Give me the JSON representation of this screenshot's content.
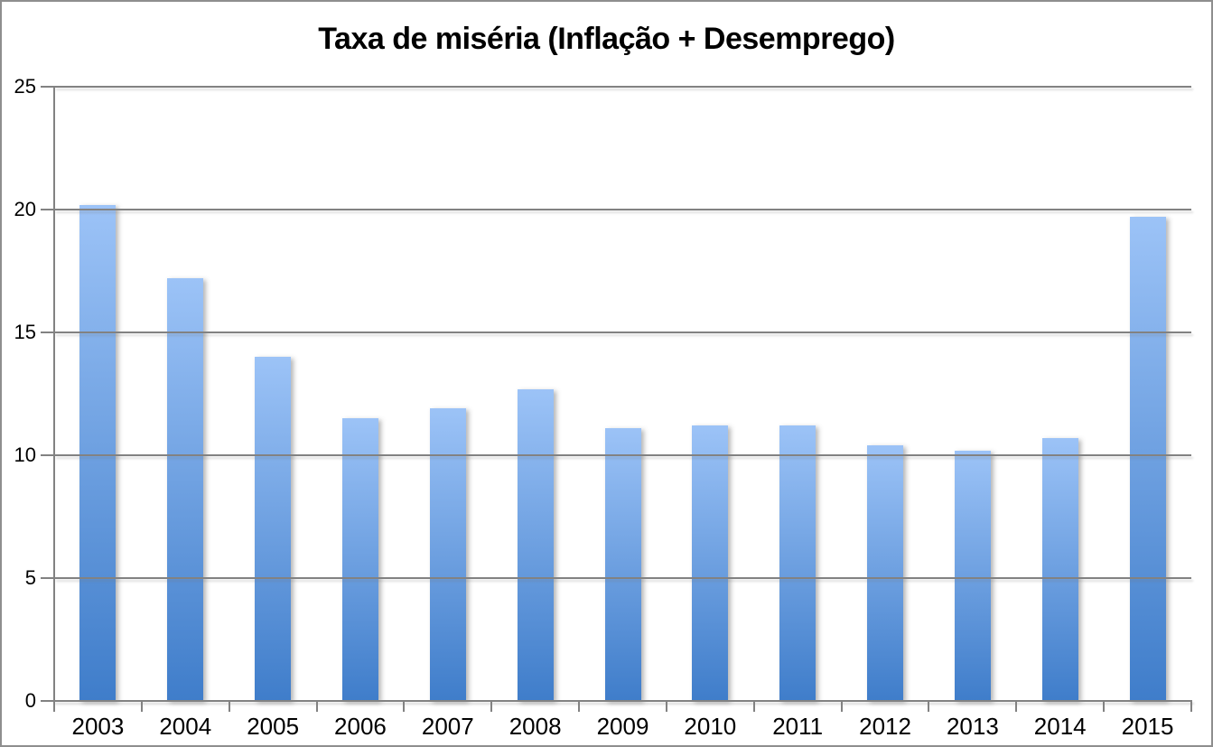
{
  "chart_data": {
    "type": "bar",
    "title": "Taxa de miséria (Inflação + Desemprego)",
    "categories": [
      "2003",
      "2004",
      "2005",
      "2006",
      "2007",
      "2008",
      "2009",
      "2010",
      "2011",
      "2012",
      "2013",
      "2014",
      "2015"
    ],
    "values": [
      20.2,
      17.2,
      14.0,
      11.5,
      11.9,
      12.7,
      11.1,
      11.2,
      11.2,
      10.4,
      10.2,
      10.7,
      19.7
    ],
    "xlabel": "",
    "ylabel": "",
    "ylim": [
      0,
      25
    ],
    "yticks": [
      0,
      5,
      10,
      15,
      20,
      25
    ],
    "grid": true,
    "legend": false,
    "colors": {
      "bar_gradient_top": "#9CC3F7",
      "bar_gradient_bottom": "#3F7DCA",
      "gridline": "#828282",
      "axis": "#828282",
      "label_text": "#000000",
      "chart_border": "#8E8E8E",
      "background": "#FFFFFF"
    }
  }
}
